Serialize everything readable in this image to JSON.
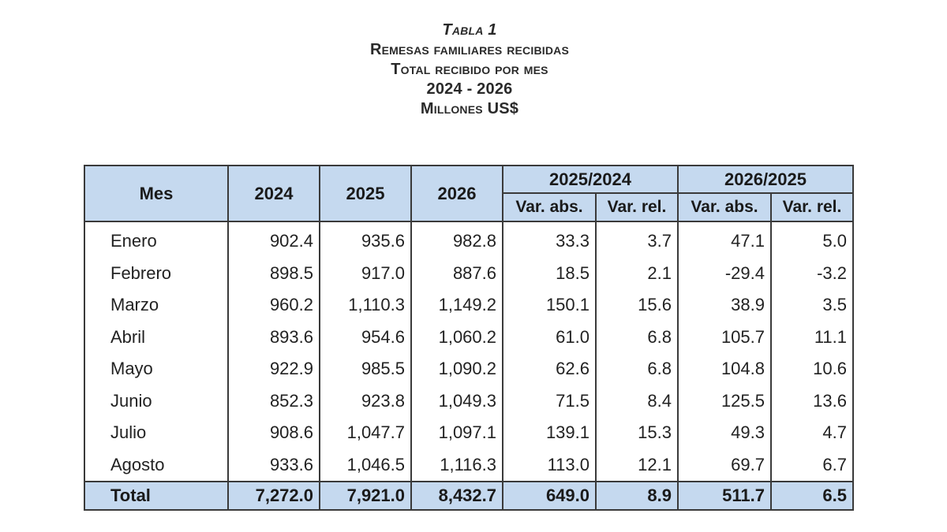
{
  "title": {
    "line1": "Tabla 1",
    "line2": "Remesas familiares recibidas",
    "line3": "Total recibido por mes",
    "line4": "2024 - 2026",
    "line5": "Millones US$"
  },
  "table": {
    "headers": {
      "mes": "Mes",
      "y2024": "2024",
      "y2025": "2025",
      "y2026": "2026",
      "group1": "2025/2024",
      "group2": "2026/2025",
      "abs1": "Var. abs.",
      "rel1": "Var. rel.",
      "abs2": "Var. abs.",
      "rel2": "Var. rel."
    },
    "rows": [
      [
        "Enero",
        "902.4",
        "935.6",
        "982.8",
        "33.3",
        "3.7",
        "47.1",
        "5.0"
      ],
      [
        "Febrero",
        "898.5",
        "917.0",
        "887.6",
        "18.5",
        "2.1",
        "-29.4",
        "-3.2"
      ],
      [
        "Marzo",
        "960.2",
        "1,110.3",
        "1,149.2",
        "150.1",
        "15.6",
        "38.9",
        "3.5"
      ],
      [
        "Abril",
        "893.6",
        "954.6",
        "1,060.2",
        "61.0",
        "6.8",
        "105.7",
        "11.1"
      ],
      [
        "Mayo",
        "922.9",
        "985.5",
        "1,090.2",
        "62.6",
        "6.8",
        "104.8",
        "10.6"
      ],
      [
        "Junio",
        "852.3",
        "923.8",
        "1,049.3",
        "71.5",
        "8.4",
        "125.5",
        "13.6"
      ],
      [
        "Julio",
        "908.6",
        "1,047.7",
        "1,097.1",
        "139.1",
        "15.3",
        "49.3",
        "4.7"
      ],
      [
        "Agosto",
        "933.6",
        "1,046.5",
        "1,116.3",
        "113.0",
        "12.1",
        "69.7",
        "6.7"
      ]
    ],
    "total": [
      "Total",
      "7,272.0",
      "7,921.0",
      "8,432.7",
      "649.0",
      "8.9",
      "511.7",
      "6.5"
    ],
    "colors": {
      "header_bg": "#c5d9ef",
      "border": "#3a3a3a"
    }
  }
}
